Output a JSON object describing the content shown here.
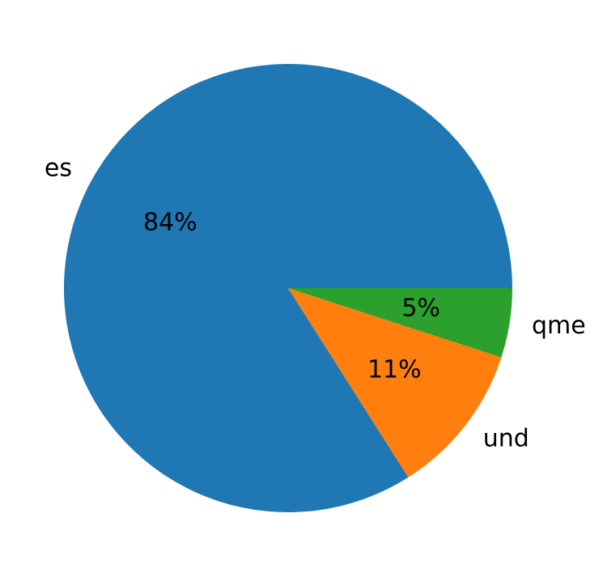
{
  "chart_data": {
    "type": "pie",
    "categories": [
      "es",
      "und",
      "qme"
    ],
    "values": [
      84,
      11,
      5
    ],
    "value_labels": [
      "84%",
      "11%",
      "5%"
    ],
    "colors": [
      "#1f77b4",
      "#ff7f0e",
      "#2ca02c"
    ],
    "start_angle": 0,
    "direction": "counterclockwise"
  }
}
